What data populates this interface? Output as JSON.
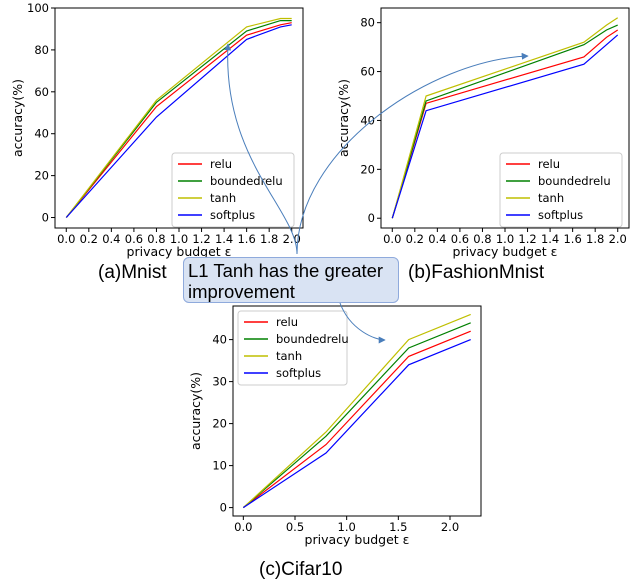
{
  "captions": {
    "a": "(a)Mnist",
    "b": "(b)FashionMnist",
    "c": "(c)Cifar10"
  },
  "annotation": {
    "text": "L1 Tanh has the greater improvement"
  },
  "series_colors": {
    "relu": "#ff0000",
    "boundedrelu": "#008000",
    "tanh": "#bfbf00",
    "softplus": "#0000ff"
  },
  "arrow_color": "#4a7ebb",
  "chart_data": [
    {
      "id": "mnist",
      "type": "line",
      "title": "",
      "xlabel": "privacy budget ε",
      "ylabel": "accuracy(%)",
      "xlim": [
        -0.1,
        2.1
      ],
      "ylim": [
        -5,
        100
      ],
      "xticks": [
        0.0,
        0.2,
        0.4,
        0.6,
        0.8,
        1.0,
        1.2,
        1.4,
        1.6,
        1.8,
        2.0
      ],
      "xticklabels": [
        "0.0",
        "0.2",
        "0.4",
        "0.6",
        "0.8",
        "1.0",
        "1.2",
        "1.4",
        "1.6",
        "1.8",
        "2.0"
      ],
      "yticks": [
        0,
        20,
        40,
        60,
        80,
        100
      ],
      "yticklabels": [
        "0",
        "20",
        "40",
        "60",
        "80",
        "100"
      ],
      "legend": "lower-right",
      "grid": false,
      "x": [
        0.0,
        0.8,
        1.6,
        1.9,
        2.0
      ],
      "series": [
        {
          "name": "relu",
          "values": [
            0,
            53,
            87,
            92,
            93
          ]
        },
        {
          "name": "boundedrelu",
          "values": [
            0,
            55,
            89,
            94,
            94
          ]
        },
        {
          "name": "tanh",
          "values": [
            0,
            56,
            91,
            95,
            95
          ]
        },
        {
          "name": "softplus",
          "values": [
            0,
            48,
            85,
            91,
            92
          ]
        }
      ]
    },
    {
      "id": "fashionmnist",
      "type": "line",
      "title": "",
      "xlabel": "privacy budget ε",
      "ylabel": "accuracy(%)",
      "xlim": [
        -0.1,
        2.1
      ],
      "ylim": [
        -4,
        86
      ],
      "xticks": [
        0.0,
        0.2,
        0.4,
        0.6,
        0.8,
        1.0,
        1.2,
        1.4,
        1.6,
        1.8,
        2.0
      ],
      "xticklabels": [
        "0.0",
        "0.2",
        "0.4",
        "0.6",
        "0.8",
        "1.0",
        "1.2",
        "1.4",
        "1.6",
        "1.8",
        "2.0"
      ],
      "yticks": [
        0,
        20,
        40,
        60,
        80
      ],
      "yticklabels": [
        "0",
        "20",
        "40",
        "60",
        "80"
      ],
      "legend": "lower-right",
      "grid": false,
      "x": [
        0.0,
        0.3,
        1.7,
        1.9,
        2.0
      ],
      "series": [
        {
          "name": "relu",
          "values": [
            0,
            47,
            66,
            74,
            77
          ]
        },
        {
          "name": "boundedrelu",
          "values": [
            0,
            48,
            71,
            77,
            79
          ]
        },
        {
          "name": "tanh",
          "values": [
            0,
            50,
            72,
            79,
            82
          ]
        },
        {
          "name": "softplus",
          "values": [
            0,
            44,
            63,
            71,
            75
          ]
        }
      ]
    },
    {
      "id": "cifar10",
      "type": "line",
      "title": "",
      "xlabel": "privacy budget ε",
      "ylabel": "accuracy(%)",
      "xlim": [
        -0.1,
        2.3
      ],
      "ylim": [
        -2,
        48
      ],
      "xticks": [
        0.0,
        0.5,
        1.0,
        1.5,
        2.0
      ],
      "xticklabels": [
        "0.0",
        "0.5",
        "1.0",
        "1.5",
        "2.0"
      ],
      "yticks": [
        0,
        10,
        20,
        30,
        40
      ],
      "yticklabels": [
        "0",
        "10",
        "20",
        "30",
        "40"
      ],
      "legend": "upper-left",
      "grid": false,
      "x": [
        0.0,
        0.8,
        1.6,
        2.2
      ],
      "series": [
        {
          "name": "relu",
          "values": [
            0,
            15,
            36,
            42
          ]
        },
        {
          "name": "boundedrelu",
          "values": [
            0,
            17,
            38,
            44
          ]
        },
        {
          "name": "tanh",
          "values": [
            0,
            18,
            40,
            46
          ]
        },
        {
          "name": "softplus",
          "values": [
            0,
            13,
            34,
            40
          ]
        }
      ]
    }
  ]
}
